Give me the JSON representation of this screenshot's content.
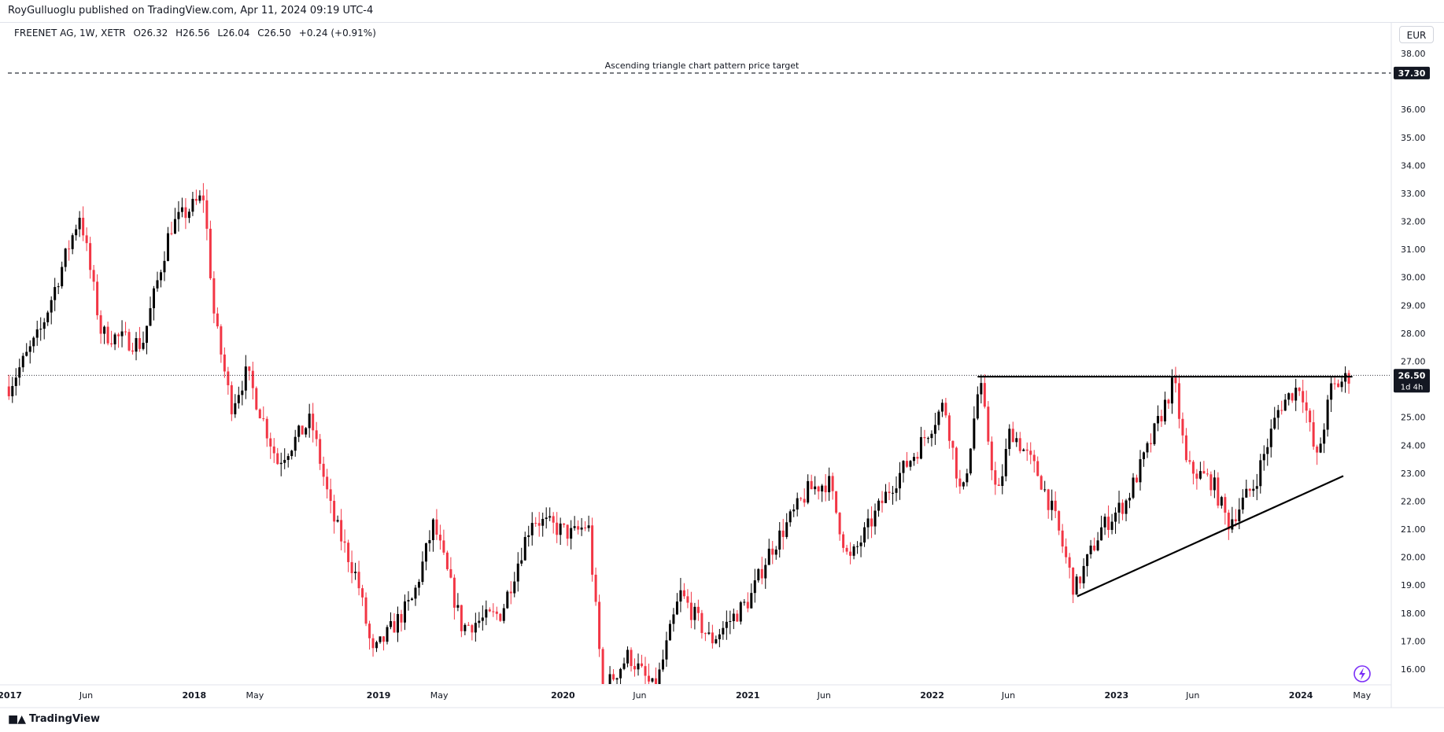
{
  "header": {
    "publisher": "RoyGulluoglu published on TradingView.com, Apr 11, 2024 09:19 UTC-4"
  },
  "legend": {
    "symbol": "FREENET AG, 1W, XETR",
    "open": "O26.32",
    "high": "H26.56",
    "low": "L26.04",
    "close": "C26.50",
    "change": "+0.24 (+0.91%)"
  },
  "currency": "EUR",
  "footer": {
    "brand": "TradingView"
  },
  "colors": {
    "up": "#000000",
    "down": "#f23645",
    "background": "#ffffff",
    "accent": "#7b2ff7"
  },
  "icons": [
    "tradingview-logo-icon",
    "lightning-icon"
  ],
  "chart_data": {
    "type": "candlestick",
    "title": "FREENET AG, 1W, XETR",
    "timeframe": "1W",
    "exchange": "XETR",
    "currency": "EUR",
    "y_ticks": [
      16.0,
      17.0,
      18.0,
      19.0,
      20.0,
      21.0,
      22.0,
      23.0,
      24.0,
      25.0,
      26.0,
      27.0,
      28.0,
      29.0,
      30.0,
      31.0,
      32.0,
      33.0,
      34.0,
      35.0,
      36.0,
      37.0,
      38.0
    ],
    "ylim": [
      15.55,
      38.55
    ],
    "x_ticks": [
      "2017",
      "Jun",
      "2018",
      "May",
      "2019",
      "May",
      "2020",
      "Jun",
      "2021",
      "Jun",
      "2022",
      "Jun",
      "2023",
      "Jun",
      "2024",
      "May"
    ],
    "x_tick_dates": [
      "2017-01-01",
      "2017-06-01",
      "2018-01-01",
      "2018-05-01",
      "2019-01-01",
      "2019-05-01",
      "2020-01-01",
      "2020-06-01",
      "2021-01-01",
      "2021-06-01",
      "2022-01-01",
      "2022-06-01",
      "2023-01-01",
      "2023-06-01",
      "2024-01-01",
      "2024-05-01"
    ],
    "xlim": [
      "2016-12-28",
      "2024-06-28"
    ],
    "series": [
      {
        "date": "2016-12-30",
        "close": 26.1
      },
      {
        "date": "2017-03-01",
        "close": 28.0
      },
      {
        "date": "2017-05-20",
        "close": 32.3
      },
      {
        "date": "2017-07-01",
        "close": 28.0
      },
      {
        "date": "2017-09-20",
        "close": 27.6
      },
      {
        "date": "2017-11-15",
        "close": 31.8
      },
      {
        "date": "2018-01-20",
        "close": 32.9
      },
      {
        "date": "2018-02-10",
        "close": 28.5
      },
      {
        "date": "2018-03-15",
        "close": 25.4
      },
      {
        "date": "2018-04-15",
        "close": 26.6
      },
      {
        "date": "2018-06-15",
        "close": 23.4
      },
      {
        "date": "2018-08-20",
        "close": 24.9
      },
      {
        "date": "2018-10-01",
        "close": 21.5
      },
      {
        "date": "2018-11-20",
        "close": 19.2
      },
      {
        "date": "2018-12-20",
        "close": 16.5
      },
      {
        "date": "2019-03-10",
        "close": 18.5
      },
      {
        "date": "2019-04-20",
        "close": 21.2
      },
      {
        "date": "2019-06-15",
        "close": 17.5
      },
      {
        "date": "2019-09-01",
        "close": 18.0
      },
      {
        "date": "2019-11-01",
        "close": 21.4
      },
      {
        "date": "2020-01-20",
        "close": 20.8
      },
      {
        "date": "2020-02-20",
        "close": 21.2
      },
      {
        "date": "2020-03-20",
        "close": 15.2
      },
      {
        "date": "2020-05-10",
        "close": 16.5
      },
      {
        "date": "2020-07-01",
        "close": 15.2
      },
      {
        "date": "2020-08-20",
        "close": 18.7
      },
      {
        "date": "2020-10-20",
        "close": 17.0
      },
      {
        "date": "2021-01-05",
        "close": 18.5
      },
      {
        "date": "2021-02-10",
        "close": 20.1
      },
      {
        "date": "2021-05-01",
        "close": 22.4
      },
      {
        "date": "2021-06-10",
        "close": 22.7
      },
      {
        "date": "2021-07-20",
        "close": 19.8
      },
      {
        "date": "2021-10-10",
        "close": 22.5
      },
      {
        "date": "2021-12-01",
        "close": 23.8
      },
      {
        "date": "2022-01-25",
        "close": 25.5
      },
      {
        "date": "2022-03-01",
        "close": 22.0
      },
      {
        "date": "2022-04-05",
        "close": 26.3
      },
      {
        "date": "2022-05-10",
        "close": 22.0
      },
      {
        "date": "2022-06-05",
        "close": 24.6
      },
      {
        "date": "2022-08-01",
        "close": 22.9
      },
      {
        "date": "2022-09-01",
        "close": 21.4
      },
      {
        "date": "2022-10-10",
        "close": 18.8
      },
      {
        "date": "2022-12-01",
        "close": 21.0
      },
      {
        "date": "2023-01-20",
        "close": 22.0
      },
      {
        "date": "2023-03-05",
        "close": 23.9
      },
      {
        "date": "2023-04-25",
        "close": 26.3
      },
      {
        "date": "2023-05-20",
        "close": 23.2
      },
      {
        "date": "2023-07-10",
        "close": 22.7
      },
      {
        "date": "2023-08-10",
        "close": 21.2
      },
      {
        "date": "2023-10-01",
        "close": 22.6
      },
      {
        "date": "2023-11-20",
        "close": 25.4
      },
      {
        "date": "2024-01-01",
        "close": 26.2
      },
      {
        "date": "2024-02-01",
        "close": 23.4
      },
      {
        "date": "2024-03-01",
        "close": 26.0
      },
      {
        "date": "2024-04-08",
        "close": 26.5
      }
    ],
    "annotations": [
      {
        "type": "horizontal_line",
        "style": "dashed",
        "value": 37.3,
        "label": "Ascending triangle chart pattern price target"
      },
      {
        "type": "horizontal_line",
        "style": "dotted",
        "value": 26.5,
        "label": ""
      },
      {
        "type": "segment",
        "style": "solid",
        "from": {
          "date": "2022-04-01",
          "value": 26.45
        },
        "to": {
          "date": "2024-04-12",
          "value": 26.45
        }
      },
      {
        "type": "segment",
        "style": "solid",
        "from": {
          "date": "2022-10-15",
          "value": 18.6
        },
        "to": {
          "date": "2024-03-25",
          "value": 22.9
        }
      }
    ],
    "price_labels": [
      {
        "value": "37.30",
        "style": "dark"
      },
      {
        "value": "26.50",
        "sub": "1d 4h",
        "style": "dark"
      }
    ],
    "grid": false
  }
}
